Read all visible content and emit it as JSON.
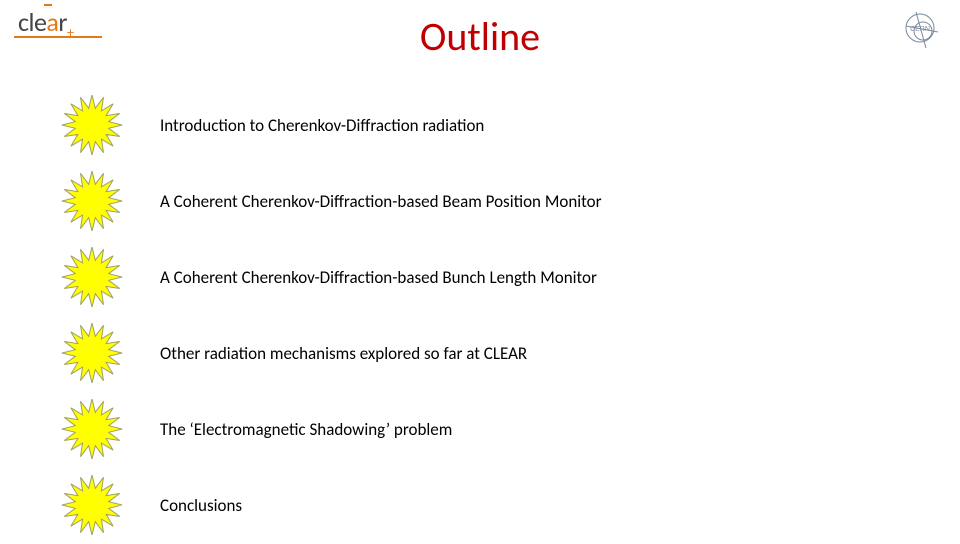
{
  "title": "Outline",
  "logo_left_text": "clear",
  "items": [
    {
      "text": "Introduction to Cherenkov-Diffraction radiation"
    },
    {
      "text": "A Coherent Cherenkov-Diffraction-based Beam Position Monitor"
    },
    {
      "text": "A Coherent Cherenkov-Diffraction-based Bunch Length Monitor"
    },
    {
      "text": "Other radiation mechanisms explored so far at CLEAR"
    },
    {
      "text": "The ‘Electromagnetic Shadowing’ problem"
    },
    {
      "text": "Conclusions"
    }
  ],
  "colors": {
    "title": "#c00000",
    "star_fill": "#ffff00",
    "star_stroke": "#a0a060",
    "accent": "#e67817",
    "text": "#000000",
    "background": "#ffffff",
    "cern_stroke": "#7a8aa0"
  },
  "typography": {
    "title_fontsize": 40,
    "item_fontsize": 17
  },
  "star": {
    "points": 16,
    "outer_r": 30,
    "inner_r": 17,
    "stroke_width": 1
  }
}
